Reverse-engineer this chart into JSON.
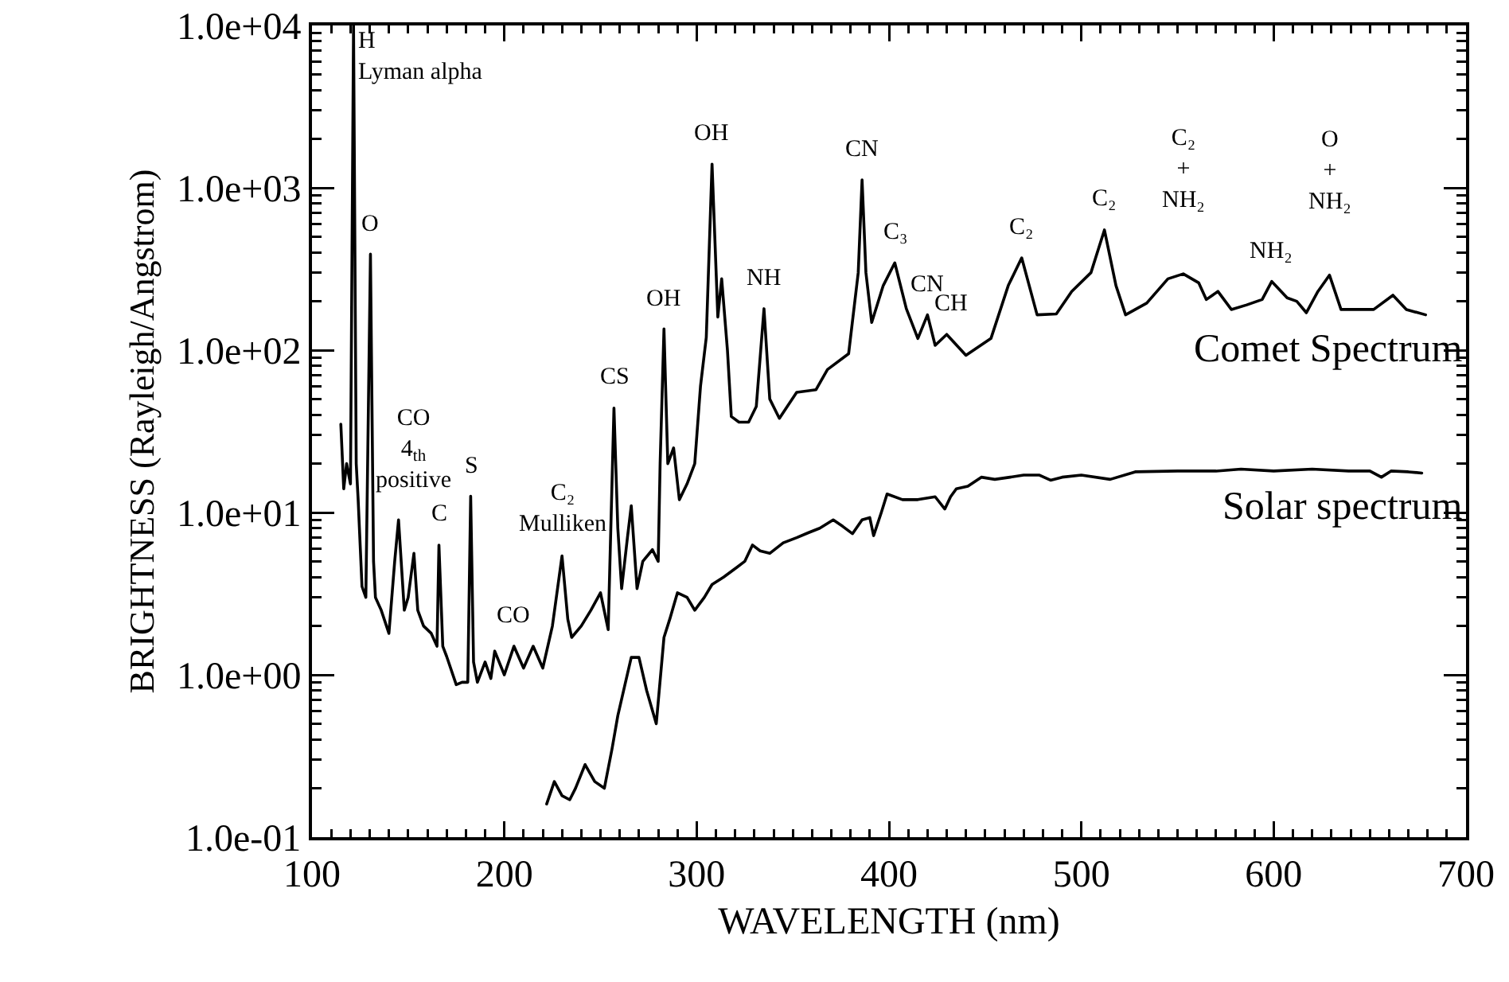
{
  "chart_data": {
    "type": "line",
    "xlabel": "WAVELENGTH (nm)",
    "ylabel": "BRIGHTNESS (Rayleigh/Angstrom)",
    "log": "y",
    "grid": false,
    "legend": "right",
    "marker": "none",
    "line_style": "solid",
    "xlim": [
      100,
      700
    ],
    "xticks": [
      100,
      200,
      300,
      400,
      500,
      600,
      700
    ],
    "ylim": [
      0.1,
      10000
    ],
    "yticks": [
      {
        "value": 0.1,
        "label": "1.0e-01"
      },
      {
        "value": 1,
        "label": "1.0e+00"
      },
      {
        "value": 10,
        "label": "1.0e+01"
      },
      {
        "value": 100,
        "label": "1.0e+02"
      },
      {
        "value": 1000,
        "label": "1.0e+03"
      },
      {
        "value": 10000,
        "label": "1.0e+04"
      }
    ],
    "series": [
      {
        "name": "Comet Spectrum",
        "color": "#000000",
        "x": [
          115,
          116.5,
          118,
          120,
          121.6,
          123,
          124,
          126,
          128,
          130.4,
          132,
          133,
          136,
          140,
          143,
          145,
          148,
          150,
          153,
          155,
          158,
          162,
          165,
          166,
          168,
          170,
          175,
          178,
          181,
          182.5,
          184,
          186,
          190,
          193,
          195,
          200,
          205,
          210,
          215,
          220,
          225,
          230,
          233,
          235,
          240,
          245,
          250,
          254,
          257,
          259,
          261,
          264,
          266,
          269,
          272,
          277,
          280,
          281,
          283,
          285,
          288,
          291,
          295,
          299,
          302,
          305,
          308,
          311,
          313,
          316,
          318,
          322,
          327,
          331,
          335,
          338,
          343,
          352,
          362,
          368,
          379,
          384,
          386,
          388,
          391,
          397,
          403,
          409,
          415,
          420,
          424,
          430,
          440,
          453,
          462,
          469,
          477,
          487,
          495,
          505,
          512,
          518,
          523,
          534,
          545,
          553,
          561,
          565,
          571,
          578,
          586,
          594,
          599,
          607,
          612,
          617,
          623,
          629,
          635,
          641,
          652,
          662,
          669,
          679
        ],
        "values": [
          35,
          14,
          20,
          15,
          10000,
          20,
          12,
          3.5,
          3,
          390,
          5,
          3,
          2.5,
          1.8,
          5,
          9,
          2.5,
          3,
          5.6,
          2.5,
          2,
          1.8,
          1.5,
          6.3,
          1.5,
          1.3,
          0.87,
          0.9,
          0.9,
          12.6,
          1.2,
          0.9,
          1.2,
          0.95,
          1.4,
          1,
          1.5,
          1.1,
          1.5,
          1.1,
          2,
          5.4,
          2.2,
          1.7,
          2,
          2.5,
          3.2,
          1.9,
          44,
          8,
          3.4,
          7,
          11,
          3.4,
          5,
          5.9,
          5,
          20,
          135,
          20,
          25,
          12,
          15,
          20,
          60,
          120,
          1400,
          160,
          275,
          100,
          39,
          36,
          36,
          45,
          180,
          50,
          38,
          55,
          57,
          76,
          95,
          300,
          1120,
          300,
          148,
          250,
          345,
          180,
          118,
          165,
          107,
          125,
          93,
          118,
          250,
          370,
          165,
          167,
          230,
          300,
          550,
          250,
          165,
          195,
          275,
          295,
          260,
          205,
          230,
          178,
          190,
          205,
          265,
          210,
          200,
          170,
          230,
          290,
          178,
          178,
          178,
          218,
          178,
          165
        ]
      },
      {
        "name": "Solar spectrum",
        "color": "#000000",
        "x": [
          222,
          226,
          230,
          234,
          237,
          242,
          247,
          252,
          256,
          259,
          263,
          266,
          270,
          274,
          279,
          283,
          286,
          290,
          295,
          299,
          304,
          308,
          314,
          321,
          325,
          329,
          333,
          338,
          345,
          352,
          358,
          364,
          371,
          376,
          381,
          386,
          390,
          392,
          396,
          399,
          407,
          415,
          424,
          429,
          432,
          435,
          441,
          448,
          455,
          463,
          470,
          478,
          484,
          490,
          500,
          515,
          528,
          550,
          570,
          583,
          600,
          620,
          639,
          650,
          656,
          661,
          670,
          677
        ],
        "values": [
          0.16,
          0.22,
          0.18,
          0.17,
          0.2,
          0.28,
          0.22,
          0.2,
          0.35,
          0.56,
          0.9,
          1.28,
          1.28,
          0.8,
          0.5,
          1.7,
          2.2,
          3.2,
          3,
          2.5,
          3,
          3.6,
          4,
          4.6,
          5,
          6.3,
          5.8,
          5.6,
          6.5,
          7,
          7.5,
          8,
          9,
          8.2,
          7.4,
          9,
          9.3,
          7.2,
          10,
          13,
          12,
          12,
          12.5,
          10.5,
          12.5,
          14,
          14.5,
          16.5,
          16,
          16.5,
          17,
          17,
          15.8,
          16.5,
          17,
          16,
          17.8,
          18,
          18,
          18.5,
          18,
          18.5,
          18,
          18,
          16.5,
          18,
          17.8,
          17.5
        ]
      }
    ],
    "annotations": [
      {
        "text": "H\nLyman alpha",
        "x": 121.6,
        "y": 10000
      },
      {
        "text": "O",
        "x": 130.4,
        "y": 390
      },
      {
        "text": "CO\n4$_{th}$\npositive",
        "x": 153,
        "y": 5.6
      },
      {
        "text": "C",
        "x": 166,
        "y": 6.3
      },
      {
        "text": "S",
        "x": 182.5,
        "y": 12.6
      },
      {
        "text": "CO",
        "x": 205,
        "y": 1.5
      },
      {
        "text": "C₂\nMulliken",
        "x": 230,
        "y": 5.4
      },
      {
        "text": "CS",
        "x": 257,
        "y": 44
      },
      {
        "text": "OH",
        "x": 283,
        "y": 135
      },
      {
        "text": "OH",
        "x": 308,
        "y": 1400
      },
      {
        "text": "NH",
        "x": 335,
        "y": 180
      },
      {
        "text": "CN",
        "x": 386,
        "y": 1120
      },
      {
        "text": "C₃",
        "x": 403,
        "y": 345
      },
      {
        "text": "CN",
        "x": 420,
        "y": 165
      },
      {
        "text": "CH",
        "x": 432,
        "y": 125
      },
      {
        "text": "C₂",
        "x": 469,
        "y": 370
      },
      {
        "text": "C₂",
        "x": 512,
        "y": 550
      },
      {
        "text": "C₂\n+\nNH₂",
        "x": 553,
        "y": 295
      },
      {
        "text": "NH₂",
        "x": 599,
        "y": 265
      },
      {
        "text": "O\n+\nNH₂",
        "x": 629,
        "y": 290
      }
    ]
  }
}
